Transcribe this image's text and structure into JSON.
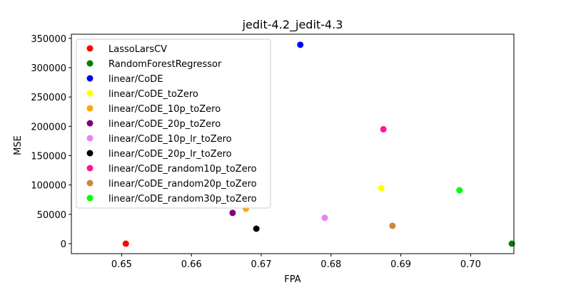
{
  "chart_data": {
    "type": "scatter",
    "title": "jedit-4.2_jedit-4.3",
    "xlabel": "FPA",
    "ylabel": "MSE",
    "xlim": [
      0.6428,
      0.7062
    ],
    "ylim": [
      -17000,
      357000
    ],
    "xticks": [
      0.65,
      0.66,
      0.67,
      0.68,
      0.69,
      0.7
    ],
    "xtick_labels": [
      "0.65",
      "0.66",
      "0.67",
      "0.68",
      "0.69",
      "0.70"
    ],
    "yticks": [
      0,
      50000,
      100000,
      150000,
      200000,
      250000,
      300000,
      350000
    ],
    "ytick_labels": [
      "0",
      "50000",
      "100000",
      "150000",
      "200000",
      "250000",
      "300000",
      "350000"
    ],
    "grid": false,
    "legend_position": "top-left",
    "series": [
      {
        "name": "LassoLarsCV",
        "color": "#ff0000",
        "x": [
          0.6506
        ],
        "y": [
          0
        ]
      },
      {
        "name": "RandomForestRegressor",
        "color": "#008000",
        "x": [
          0.7059
        ],
        "y": [
          0
        ]
      },
      {
        "name": "linear/CoDE",
        "color": "#0000ff",
        "x": [
          0.6756
        ],
        "y": [
          339000
        ]
      },
      {
        "name": "linear/CoDE_toZero",
        "color": "#ffff00",
        "x": [
          0.6872
        ],
        "y": [
          94500
        ]
      },
      {
        "name": "linear/CoDE_10p_toZero",
        "color": "#ffa500",
        "x": [
          0.6678
        ],
        "y": [
          59500
        ]
      },
      {
        "name": "linear/CoDE_20p_toZero",
        "color": "#800080",
        "x": [
          0.6659
        ],
        "y": [
          52500
        ]
      },
      {
        "name": "linear/CoDE_10p_lr_toZero",
        "color": "#ee82ee",
        "x": [
          0.6791
        ],
        "y": [
          44000
        ]
      },
      {
        "name": "linear/CoDE_20p_lr_toZero",
        "color": "#000000",
        "x": [
          0.6693
        ],
        "y": [
          25500
        ]
      },
      {
        "name": "linear/CoDE_random10p_toZero",
        "color": "#ff1493",
        "x": [
          0.6875
        ],
        "y": [
          195000
        ]
      },
      {
        "name": "linear/CoDE_random20p_toZero",
        "color": "#cd853f",
        "x": [
          0.6888
        ],
        "y": [
          30500
        ]
      },
      {
        "name": "linear/CoDE_random30p_toZero",
        "color": "#00ff00",
        "x": [
          0.6984
        ],
        "y": [
          91000
        ]
      }
    ]
  }
}
